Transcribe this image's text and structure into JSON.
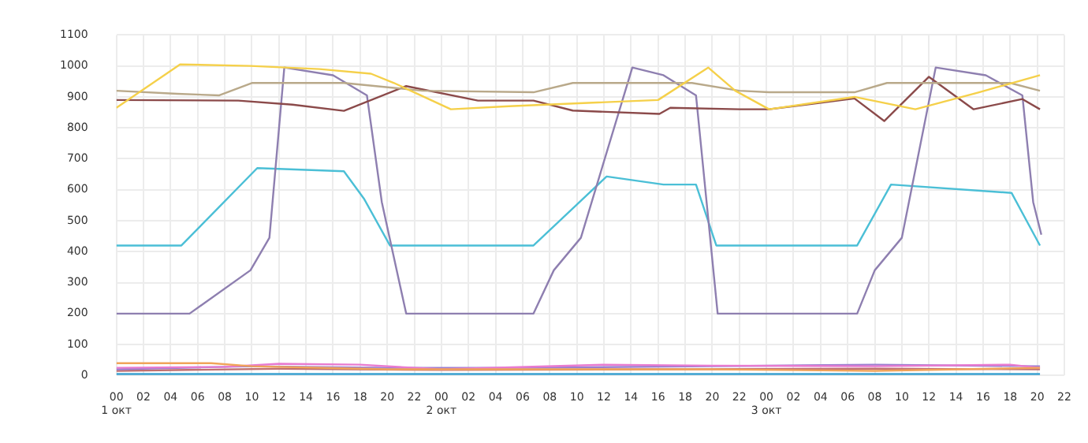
{
  "chart_data": {
    "type": "line",
    "grid": true,
    "legend": false,
    "marker": "none",
    "line_style": "solid",
    "xlim": [
      "--10-01T00:00",
      "--10-03T22:00"
    ],
    "xticks": [
      {
        "value": "--10-01T00:00",
        "label": "00\n1 окт"
      },
      {
        "value": "--10-01T02:00",
        "label": "02"
      },
      {
        "value": "--10-01T04:00",
        "label": "04"
      },
      {
        "value": "--10-01T06:00",
        "label": "06"
      },
      {
        "value": "--10-01T08:00",
        "label": "08"
      },
      {
        "value": "--10-01T10:00",
        "label": "10"
      },
      {
        "value": "--10-01T12:00",
        "label": "12"
      },
      {
        "value": "--10-01T14:00",
        "label": "14"
      },
      {
        "value": "--10-01T16:00",
        "label": "16"
      },
      {
        "value": "--10-01T18:00",
        "label": "18"
      },
      {
        "value": "--10-01T20:00",
        "label": "20"
      },
      {
        "value": "--10-01T22:00",
        "label": "22"
      },
      {
        "value": "--10-02T00:00",
        "label": "00\n2 окт"
      },
      {
        "value": "--10-02T02:00",
        "label": "02"
      },
      {
        "value": "--10-02T04:00",
        "label": "04"
      },
      {
        "value": "--10-02T06:00",
        "label": "06"
      },
      {
        "value": "--10-02T08:00",
        "label": "08"
      },
      {
        "value": "--10-02T10:00",
        "label": "10"
      },
      {
        "value": "--10-02T12:00",
        "label": "12"
      },
      {
        "value": "--10-02T14:00",
        "label": "14"
      },
      {
        "value": "--10-02T16:00",
        "label": "16"
      },
      {
        "value": "--10-02T18:00",
        "label": "18"
      },
      {
        "value": "--10-02T20:00",
        "label": "20"
      },
      {
        "value": "--10-02T22:00",
        "label": "22"
      },
      {
        "value": "--10-03T00:00",
        "label": "00\n3 окт"
      },
      {
        "value": "--10-03T02:00",
        "label": "02"
      },
      {
        "value": "--10-03T04:00",
        "label": "04"
      },
      {
        "value": "--10-03T06:00",
        "label": "06"
      },
      {
        "value": "--10-03T08:00",
        "label": "08"
      },
      {
        "value": "--10-03T10:00",
        "label": "10"
      },
      {
        "value": "--10-03T12:00",
        "label": "12"
      },
      {
        "value": "--10-03T14:00",
        "label": "14"
      },
      {
        "value": "--10-03T16:00",
        "label": "16"
      },
      {
        "value": "--10-03T18:00",
        "label": "18"
      },
      {
        "value": "--10-03T20:00",
        "label": "20"
      },
      {
        "value": "--10-03T22:00",
        "label": "22"
      }
    ],
    "ylim": [
      0,
      1100
    ],
    "yticks": [
      0,
      100,
      200,
      300,
      400,
      500,
      600,
      700,
      800,
      900,
      1000,
      1100
    ],
    "series": [
      {
        "color": "#f5d04a",
        "x": [
          "--10-01T00:00",
          "--10-01T04:42",
          "--10-01T09:54",
          "--10-01T15:00",
          "--10-01T18:48",
          "--10-01T20:30",
          "--10-02T00:42",
          "--10-02T05:00",
          "--10-02T10:30",
          "--10-02T16:00",
          "--10-02T19:42",
          "--10-02T21:42",
          "--10-03T00:12",
          "--10-03T06:30",
          "--10-03T11:00",
          "--10-03T15:42",
          "--10-03T20:12"
        ],
        "values": [
          865,
          1005,
          1000,
          990,
          975,
          945,
          860,
          870,
          880,
          890,
          995,
          920,
          860,
          900,
          860,
          915,
          970
        ]
      },
      {
        "color": "#b9a98a",
        "x": [
          "--10-01T00:00",
          "--10-01T04:30",
          "--10-01T07:36",
          "--10-01T10:00",
          "--10-01T16:48",
          "--10-01T22:36",
          "--10-02T06:48",
          "--10-02T09:42",
          "--10-02T18:30",
          "--10-02T22:00",
          "--10-03T00:12",
          "--10-03T06:30",
          "--10-03T08:54",
          "--10-03T18:00",
          "--10-03T20:12"
        ],
        "values": [
          920,
          910,
          905,
          945,
          945,
          920,
          915,
          945,
          945,
          920,
          915,
          915,
          945,
          945,
          920
        ]
      },
      {
        "color": "#8b4a4a",
        "x": [
          "--10-01T00:00",
          "--10-01T09:00",
          "--10-01T13:00",
          "--10-01T16:48",
          "--10-01T21:24",
          "--10-02T02:42",
          "--10-02T06:48",
          "--10-02T09:42",
          "--10-02T16:06",
          "--10-02T16:54",
          "--10-02T22:00",
          "--10-03T00:12",
          "--10-03T06:30",
          "--10-03T08:42",
          "--10-03T12:00",
          "--10-03T15:18",
          "--10-03T18:54",
          "--10-03T20:12"
        ],
        "values": [
          890,
          888,
          875,
          855,
          935,
          888,
          888,
          856,
          845,
          865,
          860,
          860,
          895,
          822,
          965,
          860,
          893,
          860
        ]
      },
      {
        "color": "#8e7fb0",
        "x": [
          "--10-01T00:00",
          "--10-01T05:24",
          "--10-01T09:54",
          "--10-01T11:18",
          "--10-01T12:24",
          "--10-01T16:00",
          "--10-01T18:30",
          "--10-01T19:36",
          "--10-01T21:24",
          "--10-02T06:48",
          "--10-02T08:18",
          "--10-02T10:18",
          "--10-02T14:06",
          "--10-02T16:24",
          "--10-02T18:48",
          "--10-02T20:24",
          "--10-03T06:42",
          "--10-03T08:00",
          "--10-03T10:00",
          "--10-03T12:30",
          "--10-03T16:12",
          "--10-03T18:54",
          "--10-03T19:42",
          "--10-03T20:18"
        ],
        "values": [
          200,
          200,
          340,
          445,
          995,
          970,
          905,
          560,
          200,
          200,
          340,
          445,
          995,
          970,
          905,
          200,
          200,
          340,
          445,
          995,
          970,
          905,
          560,
          455
        ]
      },
      {
        "color": "#4bbfd6",
        "x": [
          "--10-01T00:00",
          "--10-01T04:48",
          "--10-01T10:24",
          "--10-01T16:48",
          "--10-01T18:18",
          "--10-01T20:12",
          "--10-02T06:48",
          "--10-02T12:12",
          "--10-02T16:24",
          "--10-02T18:48",
          "--10-02T20:18",
          "--10-03T06:42",
          "--10-03T09:12",
          "--10-03T18:06",
          "--10-03T20:12"
        ],
        "values": [
          420,
          420,
          670,
          660,
          570,
          420,
          420,
          643,
          617,
          617,
          420,
          420,
          617,
          590,
          420
        ]
      },
      {
        "color": "#f0a35a",
        "x": [
          "--10-01T00:00",
          "--10-01T07:00",
          "--10-01T10:00",
          "--10-01T20:00",
          "--10-02T06:00",
          "--10-02T20:00",
          "--10-03T08:00",
          "--10-03T20:12"
        ],
        "values": [
          40,
          40,
          30,
          20,
          20,
          20,
          15,
          25
        ]
      },
      {
        "color": "#e87bd0",
        "x": [
          "--10-01T00:00",
          "--10-01T08:00",
          "--10-01T12:00",
          "--10-01T18:00",
          "--10-02T00:00",
          "--10-02T12:00",
          "--10-02T20:00",
          "--10-03T08:00",
          "--10-03T18:00",
          "--10-03T20:12"
        ],
        "values": [
          25,
          28,
          38,
          35,
          20,
          35,
          32,
          30,
          35,
          25
        ]
      },
      {
        "color": "#9b7fd0",
        "x": [
          "--10-01T00:00",
          "--10-01T10:00",
          "--10-01T20:00",
          "--10-02T06:00",
          "--10-02T20:00",
          "--10-03T08:00",
          "--10-03T20:12"
        ],
        "values": [
          20,
          30,
          25,
          25,
          30,
          35,
          30
        ]
      },
      {
        "color": "#c07070",
        "x": [
          "--10-01T00:00",
          "--10-01T12:00",
          "--10-02T00:00",
          "--10-02T16:00",
          "--10-03T08:00",
          "--10-03T20:12"
        ],
        "values": [
          15,
          22,
          18,
          20,
          22,
          20
        ]
      },
      {
        "color": "#3aa0d0",
        "x": [
          "--10-01T00:00",
          "--10-03T20:12"
        ],
        "values": [
          5,
          5
        ]
      }
    ]
  }
}
